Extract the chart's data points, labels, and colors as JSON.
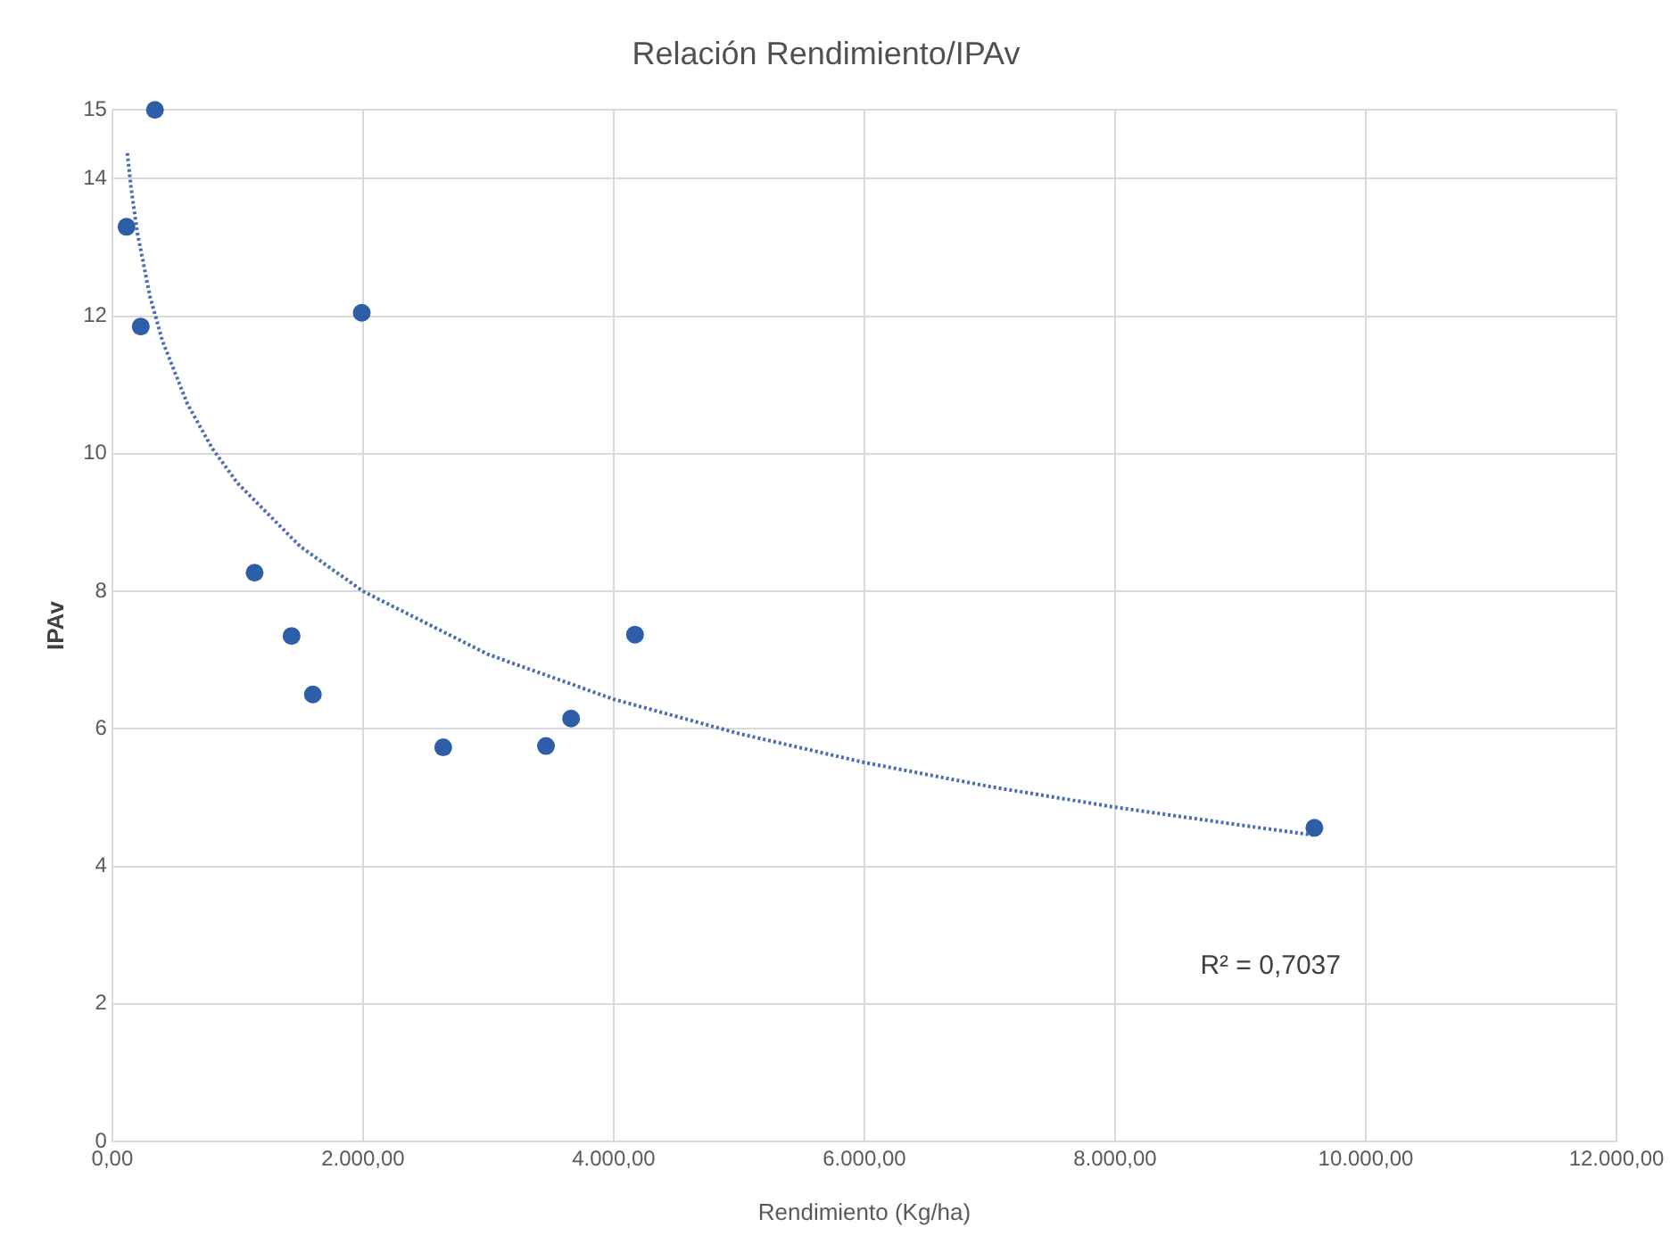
{
  "chart_data": {
    "type": "scatter",
    "title": "Relación Rendimiento/IPAv",
    "xlabel": "Rendimiento (Kg/ha)",
    "ylabel": "IPAv",
    "xlim": [
      0,
      12000
    ],
    "xticks": [
      {
        "value": 0,
        "label": "0,00"
      },
      {
        "value": 2000,
        "label": "2.000,00"
      },
      {
        "value": 4000,
        "label": "4.000,00"
      },
      {
        "value": 6000,
        "label": "6.000,00"
      },
      {
        "value": 8000,
        "label": "8.000,00"
      },
      {
        "value": 10000,
        "label": "10.000,00"
      },
      {
        "value": 12000,
        "label": "12.000,00"
      }
    ],
    "ylim": [
      0,
      15
    ],
    "yticks": [
      0,
      2,
      4,
      6,
      8,
      10,
      12,
      14,
      15
    ],
    "grid": true,
    "marker": "circle",
    "annotations": [
      "R² = 0,7037"
    ],
    "series": [
      {
        "color": "#2e5ea8",
        "x": [
          113,
          340,
          227,
          1990,
          1135,
          1430,
          1600,
          2640,
          3460,
          3660,
          4170,
          9590
        ],
        "values": [
          13.3,
          15.0,
          11.85,
          12.05,
          8.27,
          7.35,
          6.5,
          5.73,
          5.75,
          6.15,
          7.37,
          4.56
        ]
      },
      {
        "type": "line",
        "color": "#4a6cb3",
        "marker": "none",
        "line_style": "dotted",
        "x": [
          120,
          150,
          200,
          300,
          400,
          600,
          800,
          1000,
          1500,
          2000,
          3000,
          4000,
          5000,
          6000,
          7000,
          8000,
          9000,
          9600
        ],
        "values": [
          14.37,
          13.86,
          13.21,
          12.29,
          11.64,
          10.72,
          10.07,
          9.57,
          8.65,
          8.0,
          7.08,
          6.43,
          5.93,
          5.51,
          5.16,
          4.86,
          4.6,
          4.45
        ]
      }
    ]
  }
}
